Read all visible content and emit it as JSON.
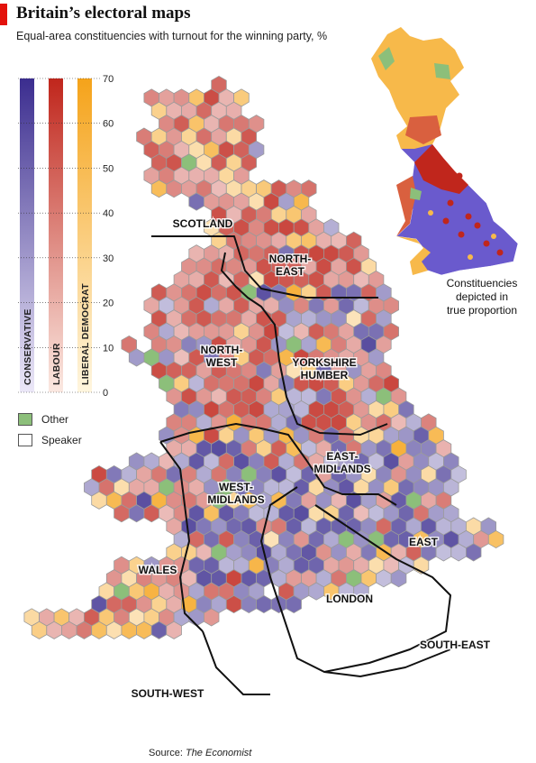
{
  "header": {
    "title": "Britain’s electoral maps",
    "subtitle": "Equal-area constituencies with turnout for the  winning party, %"
  },
  "source": {
    "prefix": "Source: ",
    "name": "The Economist"
  },
  "colors": {
    "conservative_dark": "#3b2d8f",
    "labour_dark": "#c0261c",
    "libdem_dark": "#f5a31a",
    "other": "#8cbf7a",
    "speaker": "#ffffff",
    "hex_stroke": "#9a9a9a"
  },
  "legend": {
    "scale_ticks": [
      "70",
      "60",
      "50",
      "40",
      "30",
      "20",
      "10",
      "0"
    ],
    "bars": [
      {
        "label": "CONSERVATIVE",
        "color": "#3b2d8f"
      },
      {
        "label": "LABOUR",
        "color": "#c0261c"
      },
      {
        "label": "LIBERAL DEMOCRAT",
        "color": "#f5a31a"
      }
    ],
    "other_label": "Other",
    "speaker_label": "Speaker"
  },
  "regions": [
    {
      "name": "SCOTLAND"
    },
    {
      "name": "NORTH-",
      "name2": "EAST"
    },
    {
      "name": "NORTH-",
      "name2": "WEST"
    },
    {
      "name": "YORKSHIRE",
      "name2": "HUMBER"
    },
    {
      "name": "EAST-",
      "name2": "MIDLANDS"
    },
    {
      "name": "WEST-",
      "name2": "MIDLANDS"
    },
    {
      "name": "WALES"
    },
    {
      "name": "EAST"
    },
    {
      "name": "LONDON"
    },
    {
      "name": "SOUTH-EAST"
    },
    {
      "name": "SOUTH-WEST"
    }
  ],
  "inset": {
    "caption_line1": "Constituencies",
    "caption_line2": "depicted in",
    "caption_line3": "true proportion"
  }
}
